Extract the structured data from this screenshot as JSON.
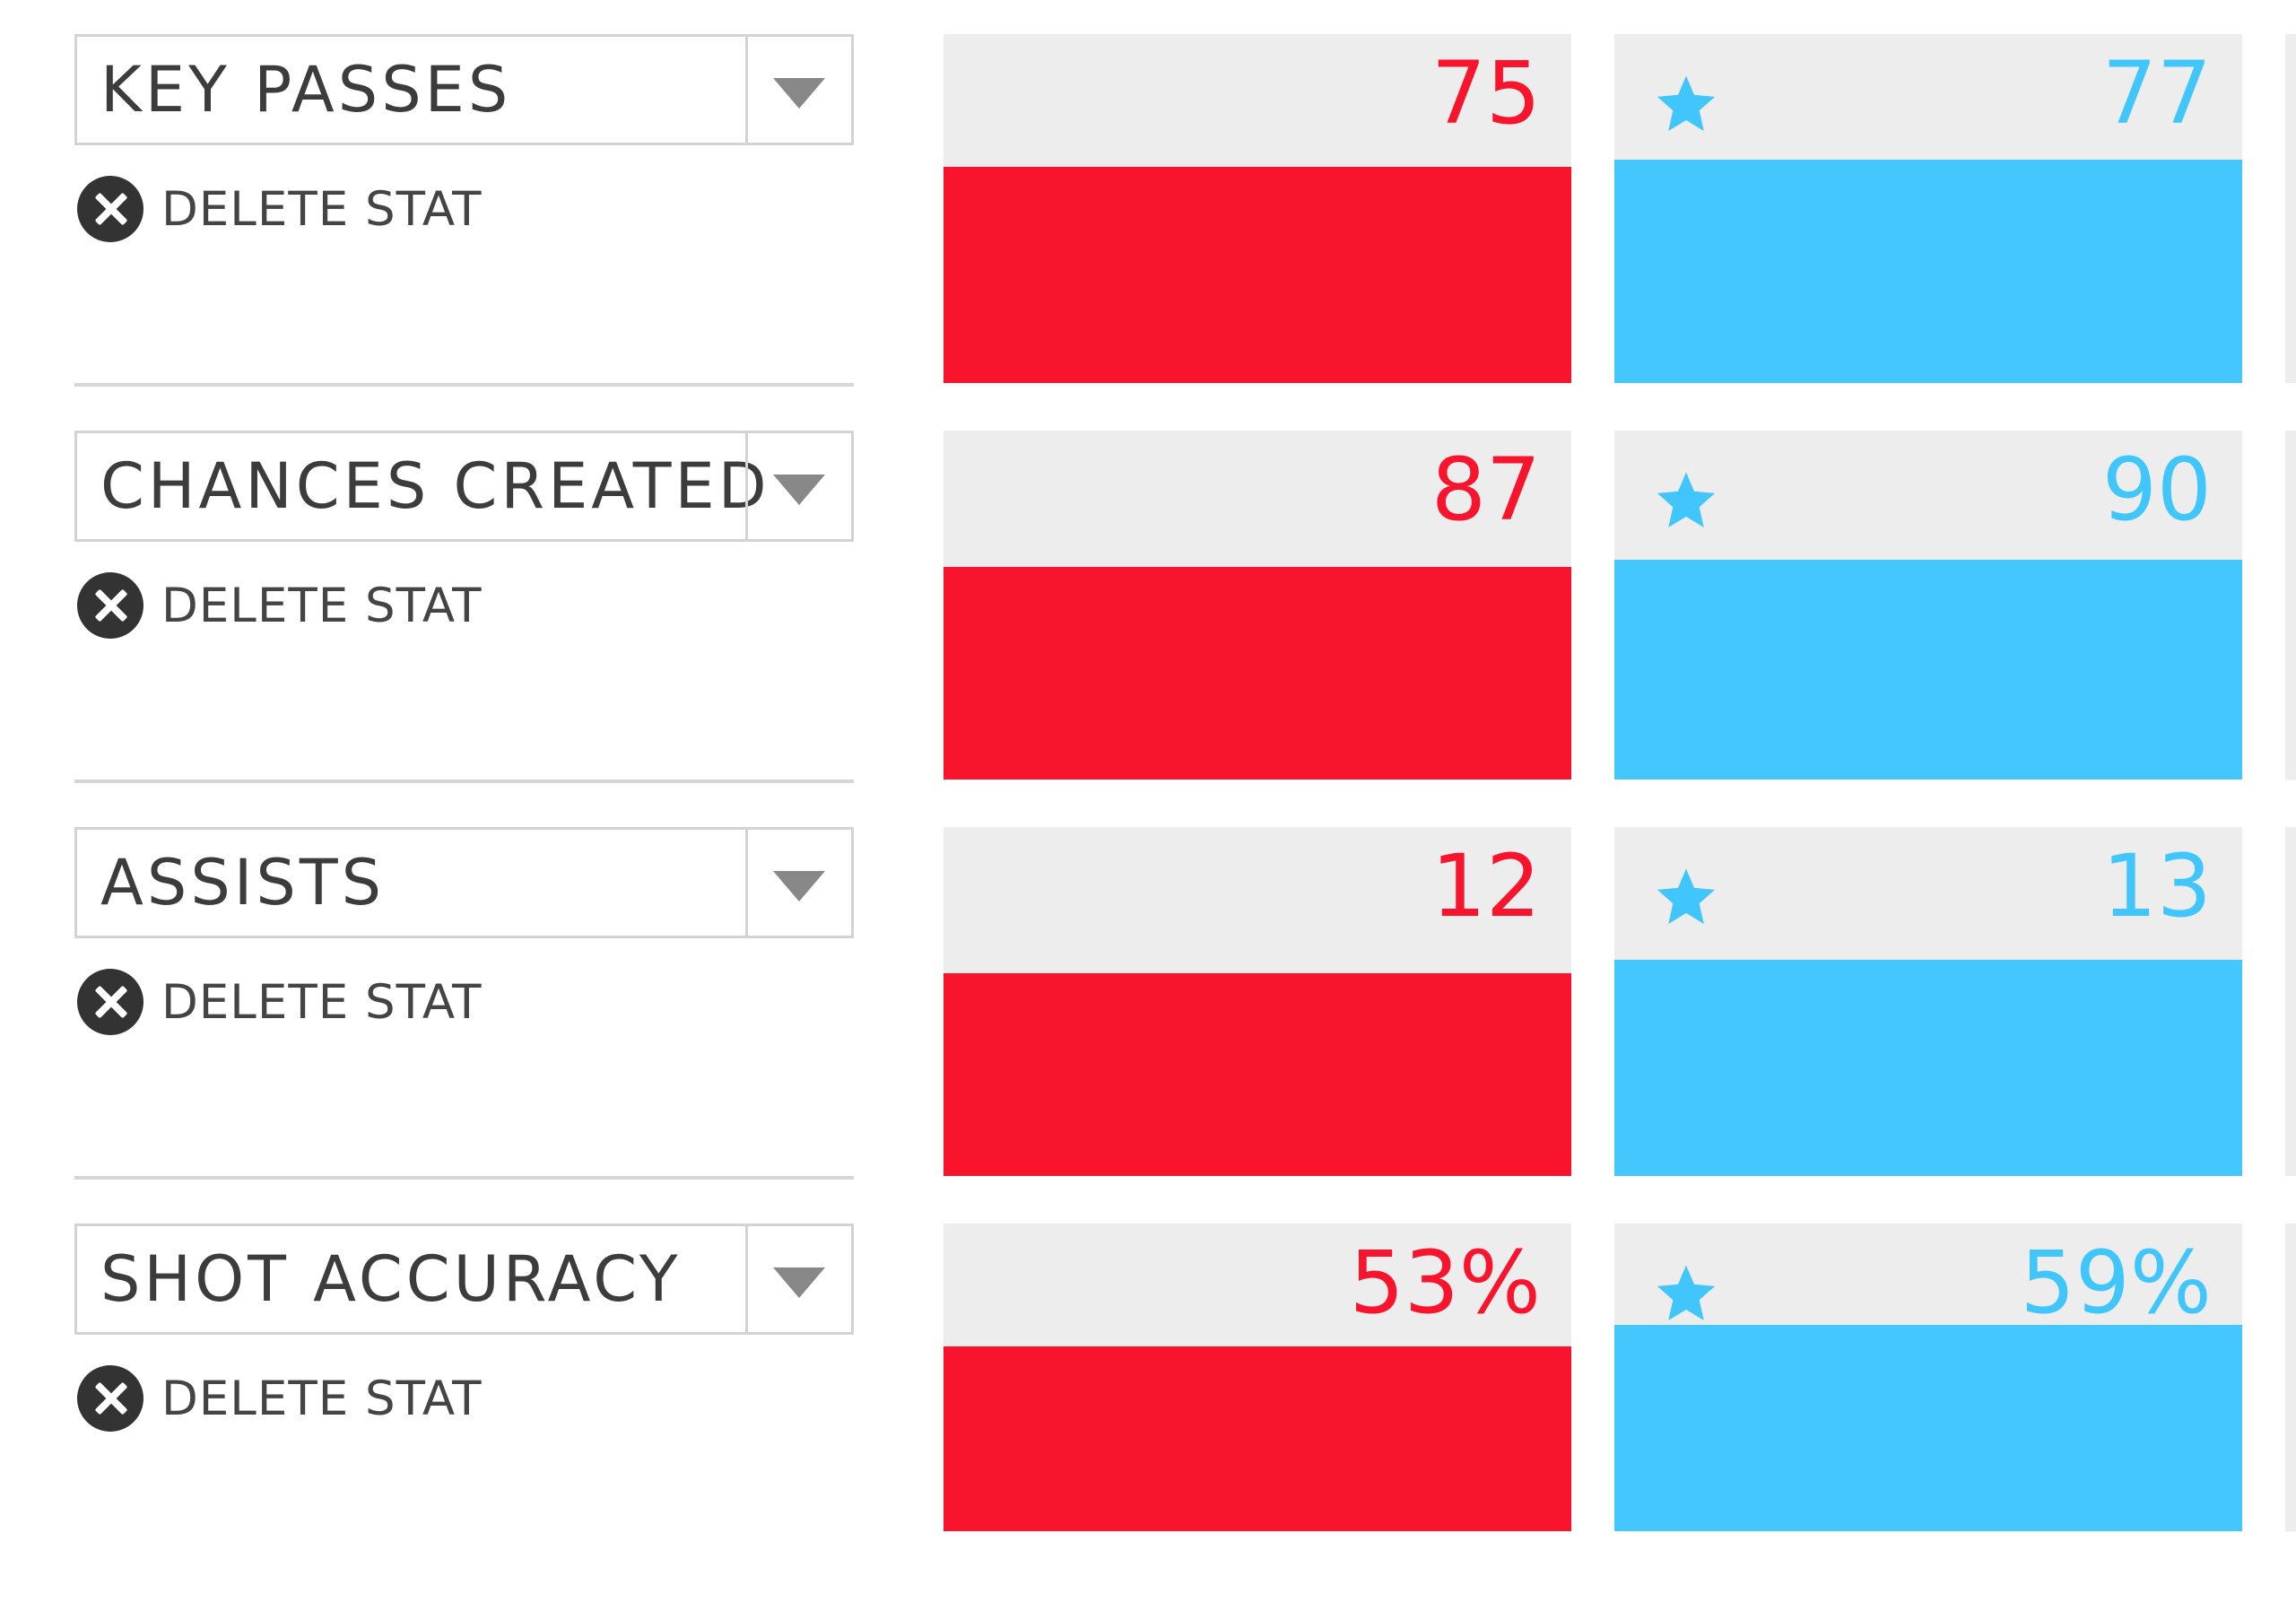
{
  "delete_label": "DELETE STAT",
  "colors": {
    "player_a": "#f7142c",
    "player_b": "#44c7fc",
    "card_background": "#ededed"
  },
  "stats": [
    {
      "name": "KEY PASSES",
      "player_a": {
        "value": "75",
        "fill_fraction": 0.62
      },
      "player_b": {
        "value": "77",
        "fill_fraction": 0.64,
        "starred": true
      }
    },
    {
      "name": "CHANCES CREATED",
      "player_a": {
        "value": "87",
        "fill_fraction": 0.61
      },
      "player_b": {
        "value": "90",
        "fill_fraction": 0.63,
        "starred": true
      }
    },
    {
      "name": "ASSISTS",
      "player_a": {
        "value": "12",
        "fill_fraction": 0.58
      },
      "player_b": {
        "value": "13",
        "fill_fraction": 0.62,
        "starred": true
      }
    },
    {
      "name": "SHOT ACCURACY",
      "player_a": {
        "value": "53%",
        "fill_fraction": 0.53
      },
      "player_b": {
        "value": "59%",
        "fill_fraction": 0.59,
        "starred": true
      }
    }
  ],
  "icons": {
    "dropdown": "chevron-down-icon",
    "delete": "close-circle-icon",
    "winner": "star-icon"
  }
}
